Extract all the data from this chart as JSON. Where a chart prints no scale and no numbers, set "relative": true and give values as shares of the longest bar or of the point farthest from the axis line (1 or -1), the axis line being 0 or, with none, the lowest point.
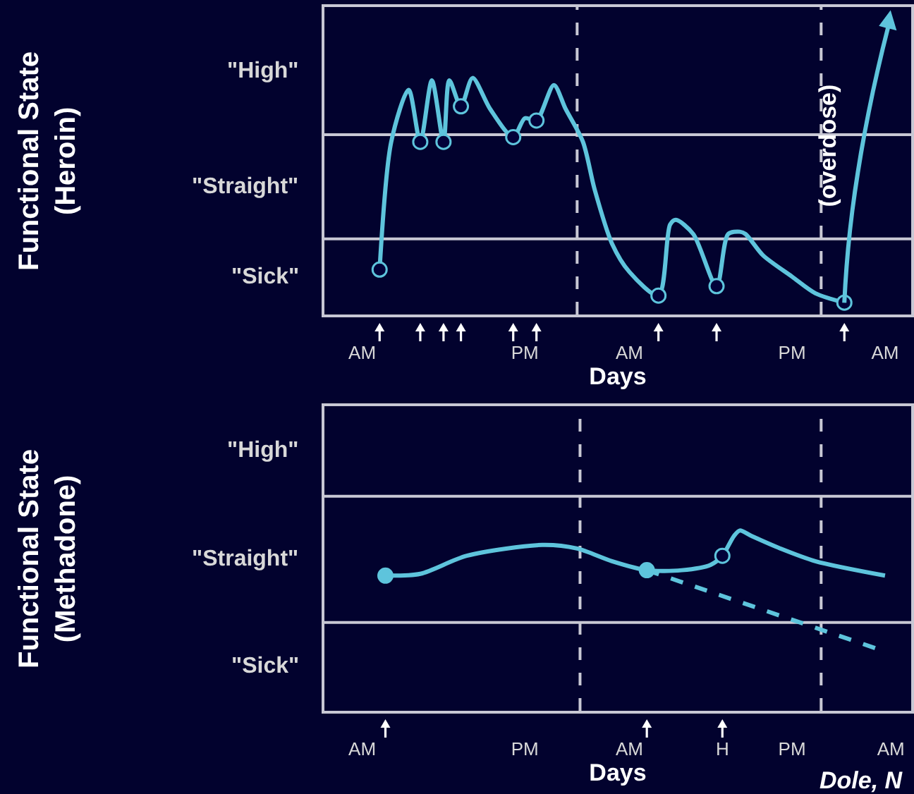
{
  "chart_data": [
    {
      "type": "line",
      "relative": true,
      "xlabel": "Days",
      "ylabel": "Functional State\n(Heroin)",
      "categories": [
        null,
        null,
        null,
        null,
        null,
        null,
        "AM",
        null,
        null,
        null,
        null,
        null,
        null,
        null,
        null,
        null,
        null,
        null,
        null,
        null,
        null,
        null,
        null,
        null,
        null,
        null,
        null,
        null,
        null,
        null,
        null,
        null,
        null,
        null,
        "PM",
        null,
        null,
        null,
        null,
        null,
        null,
        null,
        null,
        null,
        null,
        null,
        null,
        null,
        null,
        null,
        null,
        null,
        "AM",
        null,
        null,
        null,
        null,
        null,
        null,
        null,
        null,
        null,
        null,
        null,
        null,
        null,
        null,
        null,
        null,
        null,
        null,
        null,
        null,
        null,
        null,
        null,
        null,
        null,
        null,
        null,
        "PM",
        null,
        null,
        null,
        null,
        null,
        null,
        null,
        null,
        null,
        null,
        null,
        null,
        null,
        null,
        null,
        "AM",
        null,
        null,
        null,
        null
      ],
      "series": [
        {
          "color": "#5ec4dc",
          "marker": "none",
          "line_style": "solid",
          "values": [
            null,
            null,
            null,
            null,
            null,
            null,
            null,
            null,
            null,
            0.19,
            null,
            0.73,
            null,
            null,
            0.95,
            null,
            0.73,
            null,
            0.99,
            null,
            0.73,
            0.99,
            null,
            0.88,
            null,
            1,
            null,
            null,
            0.87,
            null,
            null,
            null,
            0.75,
            null,
            0.83,
            null,
            0.82,
            null,
            null,
            0.97,
            null,
            0.87,
            null,
            null,
            0.73,
            null,
            0.53,
            null,
            null,
            0.3,
            null,
            null,
            0.18,
            null,
            null,
            null,
            null,
            0.08,
            null,
            0.38,
            0.4,
            null,
            null,
            0.34,
            null,
            null,
            null,
            0.12,
            null,
            0.34,
            null,
            0.35,
            0.34,
            null,
            null,
            0.25,
            null,
            null,
            null,
            null,
            0.16,
            null,
            null,
            null,
            0.09,
            null,
            null,
            null,
            null,
            0.05,
            null,
            null,
            null,
            null,
            null,
            null,
            null,
            null,
            null,
            null,
            null
          ]
        },
        {
          "type": "scatter",
          "color": "#02023a",
          "marker": "circle",
          "values": [
            null,
            null,
            null,
            null,
            null,
            null,
            null,
            null,
            null,
            0.19,
            null,
            null,
            null,
            null,
            null,
            null,
            0.73,
            null,
            null,
            null,
            0.73,
            null,
            null,
            0.88,
            null,
            null,
            null,
            null,
            null,
            null,
            null,
            null,
            0.75,
            null,
            null,
            null,
            0.82,
            null,
            null,
            null,
            null,
            null,
            null,
            null,
            null,
            null,
            null,
            null,
            null,
            null,
            null,
            null,
            null,
            null,
            null,
            null,
            null,
            0.08,
            null,
            null,
            null,
            null,
            null,
            null,
            null,
            null,
            null,
            0.12,
            null,
            null,
            null,
            null,
            null,
            null,
            null,
            null,
            null,
            null,
            null,
            null,
            null,
            null,
            null,
            null,
            null,
            null,
            null,
            null,
            null,
            0.05,
            null,
            null,
            null,
            null,
            null,
            null,
            null,
            null,
            null,
            null,
            null
          ]
        }
      ],
      "ref_lines": [
        {
          "axis": "y",
          "value": 0.76,
          "color": "#c8c8d4"
        },
        {
          "axis": "y",
          "value": 0.32,
          "color": "#c8c8d4"
        }
      ],
      "annotations": [
        "\"High\"",
        "\"Straight\"",
        "\"Sick\"",
        "(overdose)"
      ]
    },
    {
      "type": "line",
      "relative": true,
      "xlabel": "Days",
      "ylabel": "Functional State\n(Methadone)",
      "categories": [
        null,
        null,
        null,
        null,
        null,
        null,
        "AM",
        null,
        null,
        null,
        null,
        null,
        null,
        null,
        null,
        null,
        null,
        null,
        null,
        null,
        null,
        null,
        null,
        null,
        null,
        null,
        null,
        null,
        null,
        null,
        null,
        null,
        null,
        null,
        "PM",
        null,
        null,
        null,
        null,
        null,
        null,
        null,
        null,
        null,
        null,
        null,
        null,
        null,
        null,
        null,
        null,
        null,
        "AM",
        null,
        null,
        null,
        null,
        null,
        null,
        null,
        null,
        null,
        null,
        null,
        null,
        null,
        null,
        null,
        "H",
        null,
        null,
        null,
        null,
        null,
        null,
        null,
        null,
        null,
        null,
        null,
        "PM",
        null,
        null,
        null,
        null,
        null,
        null,
        null,
        null,
        null,
        null,
        null,
        null,
        null,
        null,
        null,
        null,
        "AM",
        null,
        null,
        null
      ],
      "series": [
        {
          "color": "#5ec4dc",
          "marker": "none",
          "line_style": "solid",
          "values": [
            null,
            null,
            null,
            null,
            null,
            null,
            null,
            null,
            null,
            null,
            0.75,
            null,
            null,
            null,
            null,
            null,
            0.76,
            null,
            null,
            null,
            null,
            null,
            null,
            null,
            0.86,
            null,
            null,
            null,
            null,
            null,
            null,
            null,
            null,
            null,
            null,
            null,
            null,
            0.92,
            null,
            null,
            null,
            null,
            null,
            0.9,
            null,
            null,
            null,
            null,
            null,
            0.83,
            null,
            null,
            null,
            null,
            null,
            0.78,
            null,
            null,
            null,
            null,
            null,
            0.78,
            null,
            null,
            null,
            null,
            0.81,
            null,
            0.86,
            null,
            0.97,
            1,
            null,
            0.97,
            null,
            null,
            null,
            null,
            0.9,
            null,
            null,
            null,
            null,
            null,
            0.83,
            null,
            null,
            null,
            null,
            null,
            null,
            null,
            null,
            null,
            null,
            null,
            0.75,
            null,
            null,
            null,
            null
          ]
        },
        {
          "color": "#5ec4dc",
          "marker": "none",
          "line_style": "dashed",
          "values": [
            null,
            null,
            null,
            null,
            null,
            null,
            null,
            null,
            null,
            null,
            null,
            null,
            null,
            null,
            null,
            null,
            null,
            null,
            null,
            null,
            null,
            null,
            null,
            null,
            null,
            null,
            null,
            null,
            null,
            null,
            null,
            null,
            null,
            null,
            null,
            null,
            null,
            null,
            null,
            null,
            null,
            null,
            null,
            null,
            null,
            null,
            null,
            null,
            null,
            null,
            null,
            null,
            null,
            null,
            null,
            0.78,
            null,
            null,
            null,
            null,
            null,
            null,
            null,
            null,
            null,
            null,
            null,
            null,
            null,
            null,
            null,
            null,
            null,
            null,
            null,
            null,
            null,
            null,
            null,
            null,
            null,
            null,
            null,
            null,
            null,
            null,
            null,
            null,
            null,
            null,
            null,
            null,
            null,
            null,
            null,
            0.34,
            null,
            null,
            null,
            null,
            null
          ]
        },
        {
          "type": "scatter",
          "color": "#5ec4dc",
          "marker": "circle",
          "values": [
            null,
            null,
            null,
            null,
            null,
            null,
            null,
            null,
            null,
            null,
            0.75,
            null,
            null,
            null,
            null,
            null,
            null,
            null,
            null,
            null,
            null,
            null,
            null,
            null,
            null,
            null,
            null,
            null,
            null,
            null,
            null,
            null,
            null,
            null,
            null,
            null,
            null,
            null,
            null,
            null,
            null,
            null,
            null,
            null,
            null,
            null,
            null,
            null,
            null,
            null,
            null,
            null,
            null,
            null,
            null,
            0.78,
            null,
            null,
            null,
            null,
            null,
            null,
            null,
            null,
            null,
            null,
            null,
            null,
            null,
            null,
            null,
            null,
            null,
            null,
            null,
            null,
            null,
            null,
            null,
            null,
            null,
            null,
            null,
            null,
            null,
            null,
            null,
            null,
            null,
            null,
            null,
            null,
            null,
            null,
            null,
            null,
            null,
            null,
            null,
            null,
            null
          ]
        },
        {
          "type": "scatter",
          "color": "#02023a",
          "marker": "circle",
          "values": [
            null,
            null,
            null,
            null,
            null,
            null,
            null,
            null,
            null,
            null,
            null,
            null,
            null,
            null,
            null,
            null,
            null,
            null,
            null,
            null,
            null,
            null,
            null,
            null,
            null,
            null,
            null,
            null,
            null,
            null,
            null,
            null,
            null,
            null,
            null,
            null,
            null,
            null,
            null,
            null,
            null,
            null,
            null,
            null,
            null,
            null,
            null,
            null,
            null,
            null,
            null,
            null,
            null,
            null,
            null,
            null,
            null,
            null,
            null,
            null,
            null,
            null,
            null,
            null,
            null,
            null,
            null,
            null,
            0.86,
            null,
            null,
            null,
            null,
            null,
            null,
            null,
            null,
            null,
            null,
            null,
            null,
            null,
            null,
            null,
            null,
            null,
            null,
            null,
            null,
            null,
            null,
            null,
            null,
            null,
            null,
            null,
            null,
            null,
            null,
            null,
            null
          ]
        }
      ],
      "ref_lines": [
        {
          "axis": "y",
          "value": 1.19,
          "color": "#c8c8d4"
        },
        {
          "axis": "y",
          "value": 0.49,
          "color": "#c8c8d4"
        }
      ],
      "annotations": [
        "\"High\"",
        "\"Straight\"",
        "\"Sick\"",
        "Dole, N"
      ]
    }
  ]
}
